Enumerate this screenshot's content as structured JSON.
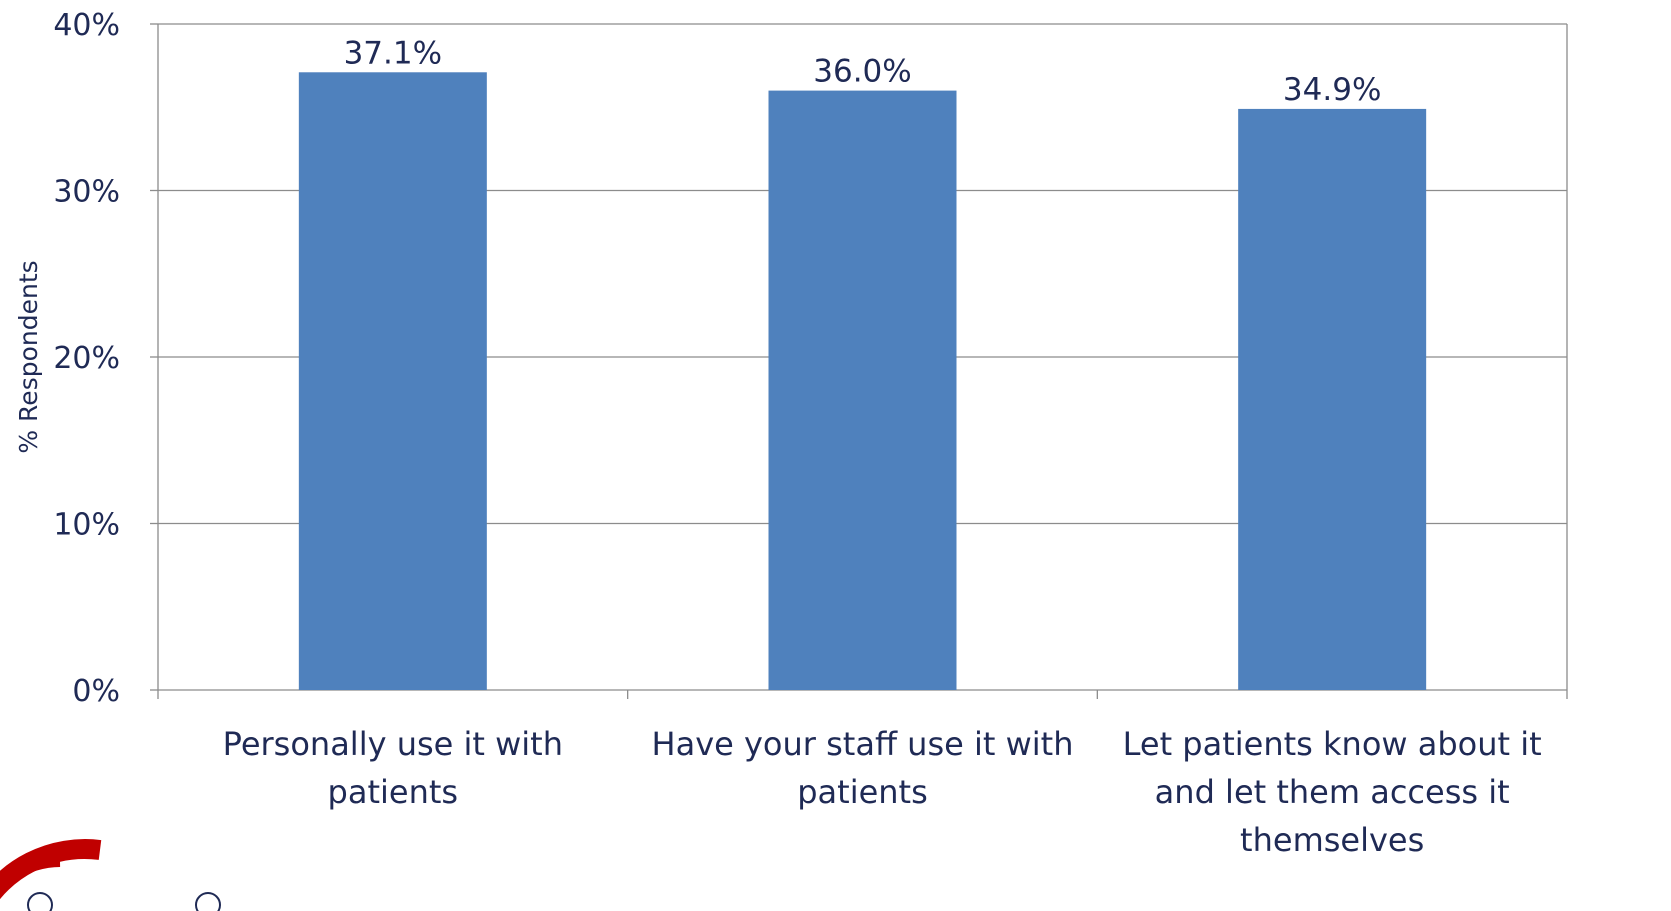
{
  "chart_data": {
    "type": "bar",
    "categories": [
      [
        "Personally use it with",
        "patients"
      ],
      [
        "Have your staff use it with",
        "patients"
      ],
      [
        "Let patients know about it",
        "and let them access it",
        "themselves"
      ]
    ],
    "values": [
      37.1,
      36.0,
      34.9
    ],
    "value_labels": [
      "37.1%",
      "36.0%",
      "34.9%"
    ],
    "ylabel": "% Respondents",
    "xlabel": "",
    "ylim": [
      0,
      40
    ],
    "yticks": [
      0,
      10,
      20,
      30,
      40
    ],
    "ytick_labels": [
      "0%",
      "10%",
      "20%",
      "30%",
      "40%"
    ],
    "grid": true,
    "colors": {
      "bar": "#4f81bd",
      "grid": "#8c8c8c",
      "text": "#1f2a55",
      "logo": "#c00000"
    }
  }
}
